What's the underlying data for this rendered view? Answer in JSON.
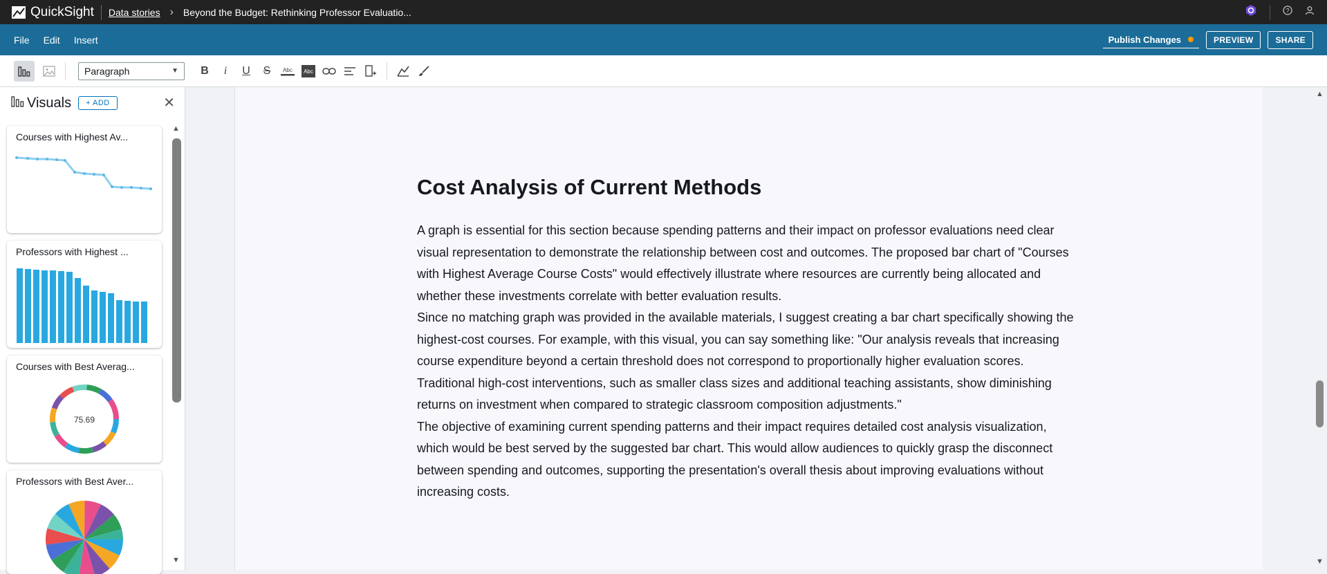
{
  "app": {
    "name": "QuickSight",
    "breadcrumb_link": "Data stories",
    "breadcrumb_title": "Beyond the Budget: Rethinking Professor Evaluatio..."
  },
  "menu": {
    "file": "File",
    "edit": "Edit",
    "insert": "Insert",
    "publish": "Publish Changes",
    "preview": "PREVIEW",
    "share": "SHARE"
  },
  "toolbar": {
    "paragraph_style": "Paragraph"
  },
  "visuals_panel": {
    "title": "Visuals",
    "add_label": "ADD",
    "cards": [
      {
        "title": "Courses with Highest Av...",
        "type": "line-icon"
      },
      {
        "title": "Professors with Highest ...",
        "type": "bar-icon"
      },
      {
        "title": "Courses with Best Averag...",
        "type": "donut-icon",
        "center_value": "75.69"
      },
      {
        "title": "Professors with Best Aver...",
        "type": "pie-icon"
      }
    ]
  },
  "document": {
    "heading": "Cost Analysis of Current Methods",
    "paragraphs": [
      "A graph is essential for this section because spending patterns and their impact on professor evaluations need clear visual representation to demonstrate the relationship between cost and outcomes. The proposed bar chart of \"Courses with Highest Average Course Costs\" would effectively illustrate where resources are currently being allocated and whether these investments correlate with better evaluation results.",
      "Since no matching graph was provided in the available materials, I suggest creating a bar chart specifically showing the highest-cost courses. For example, with this visual, you can say something like: \"Our analysis reveals that increasing course expenditure beyond a certain threshold does not correspond to proportionally higher evaluation scores. Traditional high-cost interventions, such as smaller class sizes and additional teaching assistants, show diminishing returns on investment when compared to strategic classroom composition adjustments.\"",
      "The objective of examining current spending patterns and their impact requires detailed cost analysis visualization, which would be best served by the suggested bar chart. This would allow audiences to quickly grasp the disconnect between spending and outcomes, supporting the presentation's overall thesis about improving evaluations without increasing costs."
    ]
  },
  "colors": {
    "topbar": "#222222",
    "menubar": "#1b6c98",
    "accent": "#0073bb",
    "publish_dot": "#ff9900",
    "chart_blue": "#29a8e0"
  }
}
